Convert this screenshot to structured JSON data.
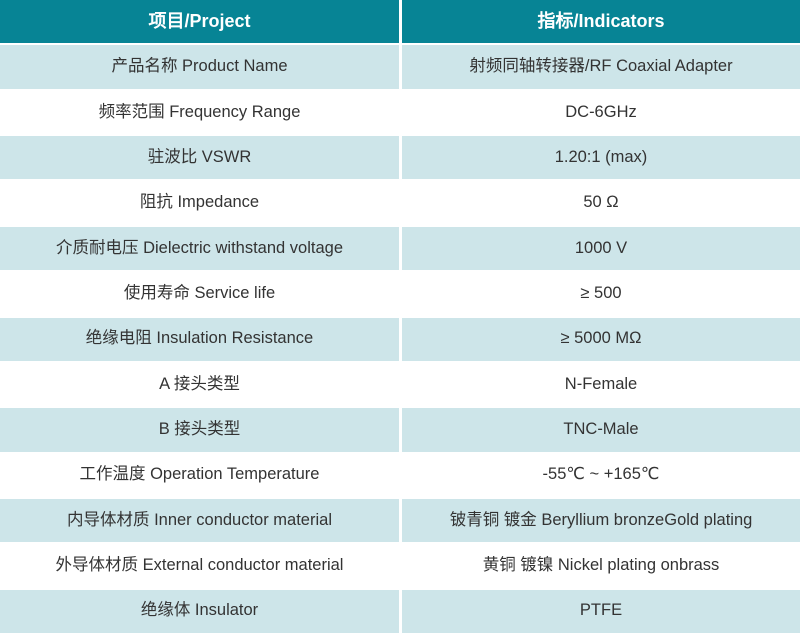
{
  "colors": {
    "header_bg": "#078495",
    "header_text": "#ffffff",
    "row_alt_bg": "#cde5e9",
    "row_bg": "#ffffff",
    "body_text": "#333333",
    "gutter": "#ffffff"
  },
  "table": {
    "headers": {
      "project": "项目/Project",
      "indicators": "指标/Indicators"
    },
    "rows": [
      {
        "project": "产品名称 Product Name",
        "indicator": "射频同轴转接器/RF Coaxial Adapter"
      },
      {
        "project": "频率范围 Frequency Range",
        "indicator": "DC-6GHz"
      },
      {
        "project": "驻波比 VSWR",
        "indicator": "1.20:1 (max)"
      },
      {
        "project": "阻抗 Impedance",
        "indicator": "50 Ω"
      },
      {
        "project": "介质耐电压 Dielectric withstand voltage",
        "indicator": "1000 V"
      },
      {
        "project": "使用寿命 Service life",
        "indicator": "≥ 500"
      },
      {
        "project": "绝缘电阻 Insulation Resistance",
        "indicator": "≥ 5000 MΩ"
      },
      {
        "project": "A 接头类型",
        "indicator": "N-Female"
      },
      {
        "project": "B 接头类型",
        "indicator": "TNC-Male"
      },
      {
        "project": "工作温度 Operation Temperature",
        "indicator": "-55℃ ~ +165℃"
      },
      {
        "project": "内导体材质 Inner conductor material",
        "indicator": "铍青铜 镀金 Beryllium bronzeGold plating"
      },
      {
        "project": "外导体材质 External conductor material",
        "indicator": "黄铜 镀镍 Nickel plating onbrass"
      },
      {
        "project": "绝缘体 Insulator",
        "indicator": "PTFE"
      }
    ]
  }
}
